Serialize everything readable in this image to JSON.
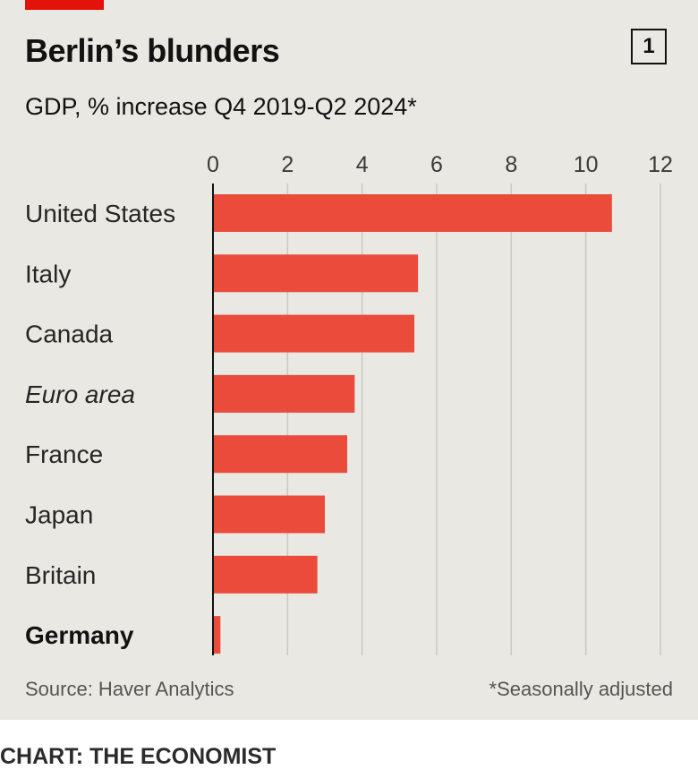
{
  "colors": {
    "bar": "#ea4b3b",
    "tag": "#e3120b",
    "grid": "#c9c8c2",
    "axis": "#121212"
  },
  "header": {
    "title": "Berlin’s blunders",
    "subtitle": "GDP, % increase Q4 2019-Q2 2024*",
    "badge": "1"
  },
  "footer": {
    "source": "Source: Haver Analytics",
    "footnote": "*Seasonally adjusted",
    "credit": "CHART: THE ECONOMIST"
  },
  "chart_data": {
    "type": "bar",
    "orientation": "horizontal",
    "categories": [
      "United States",
      "Italy",
      "Canada",
      "Euro area",
      "France",
      "Japan",
      "Britain",
      "Germany"
    ],
    "category_styles": [
      "normal",
      "normal",
      "normal",
      "italic",
      "normal",
      "normal",
      "normal",
      "bold"
    ],
    "values": [
      10.7,
      5.5,
      5.4,
      3.8,
      3.6,
      3.0,
      2.8,
      0.2
    ],
    "xlim": [
      0,
      12
    ],
    "xticks": [
      "0",
      "2",
      "4",
      "6",
      "8",
      "10",
      "12"
    ],
    "xtick_values": [
      0,
      2,
      4,
      6,
      8,
      10,
      12
    ],
    "axis_position": "top",
    "grid": true
  }
}
